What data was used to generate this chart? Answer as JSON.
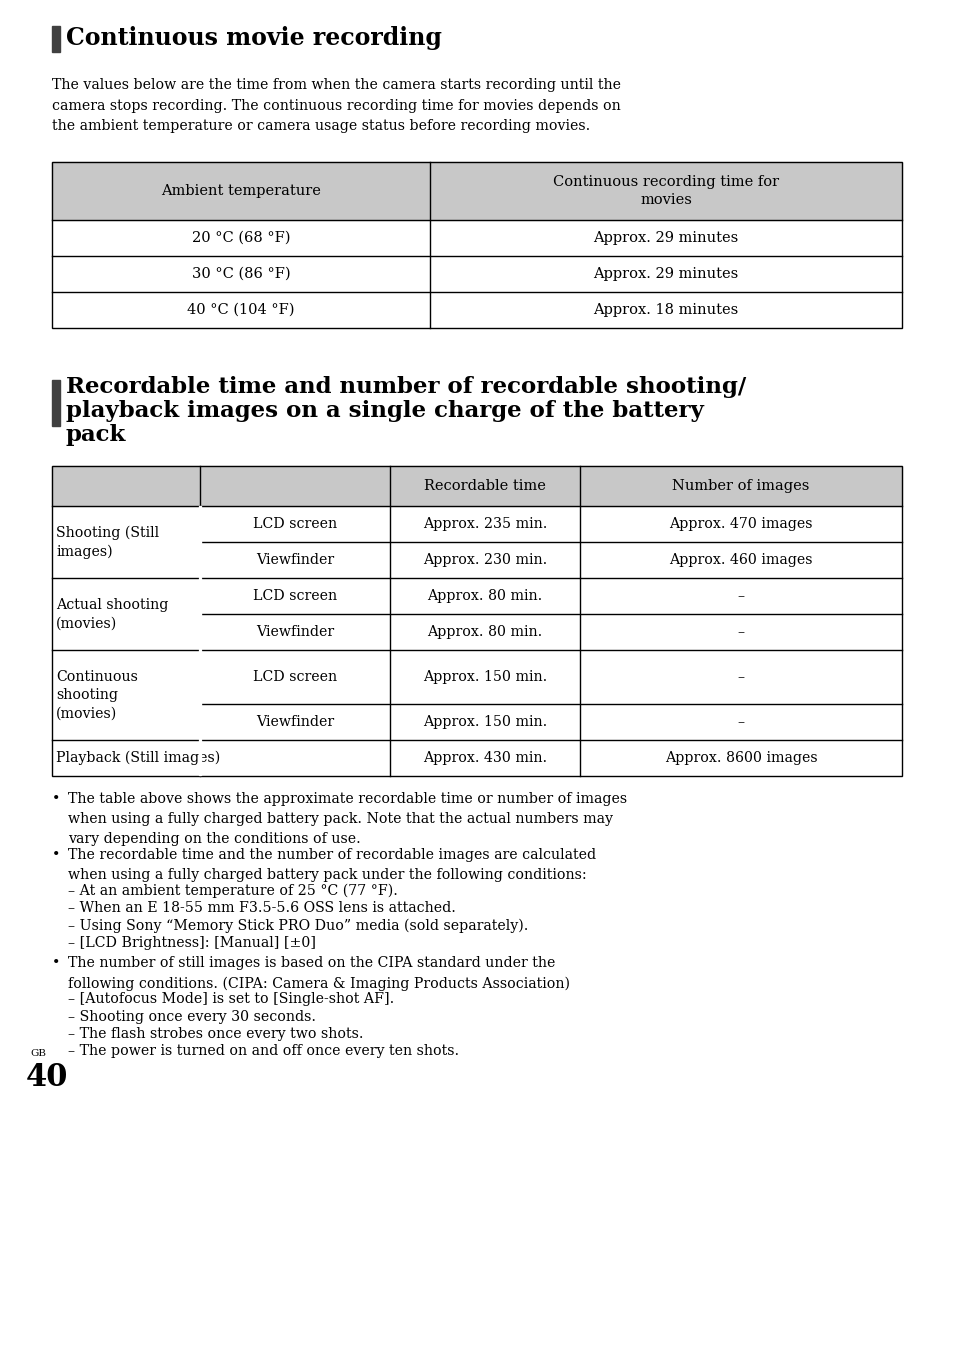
{
  "bg_color": "#ffffff",
  "title1": "Continuous movie recording",
  "para1": "The values below are the time from when the camera starts recording until the\ncamera stops recording. The continuous recording time for movies depends on\nthe ambient temperature or camera usage status before recording movies.",
  "table1_header": [
    "Ambient temperature",
    "Continuous recording time for\nmovies"
  ],
  "table1_rows": [
    [
      "20 °C (68 °F)",
      "Approx. 29 minutes"
    ],
    [
      "30 °C (86 °F)",
      "Approx. 29 minutes"
    ],
    [
      "40 °C (104 °F)",
      "Approx. 18 minutes"
    ]
  ],
  "title2_lines": [
    "Recordable time and number of recordable shooting/",
    "playback images on a single charge of the battery",
    "pack"
  ],
  "table2_header": [
    "",
    "",
    "Recordable time",
    "Number of images"
  ],
  "bullets": [
    "The table above shows the approximate recordable time or number of images\nwhen using a fully charged battery pack. Note that the actual numbers may\nvary depending on the conditions of use.",
    "The recordable time and the number of recordable images are calculated\nwhen using a fully charged battery pack under the following conditions:",
    "– At an ambient temperature of 25 °C (77 °F).",
    "– When an E 18-55 mm F3.5-5.6 OSS lens is attached.",
    "– Using Sony “Memory Stick PRO Duo” media (sold separately).",
    "– [LCD Brightness]: [Manual] [±0]",
    "The number of still images is based on the CIPA standard under the\nfollowing conditions. (CIPA: Camera & Imaging Products Association)",
    "– [Autofocus Mode] is set to [Single-shot AF].",
    "– Shooting once every 30 seconds.",
    "– The flash strobes once every two shots.",
    "– The power is turned on and off once every ten shots."
  ],
  "page_num": "40",
  "page_label": "GB",
  "header_bg": "#c8c8c8",
  "marker_color": "#404040"
}
